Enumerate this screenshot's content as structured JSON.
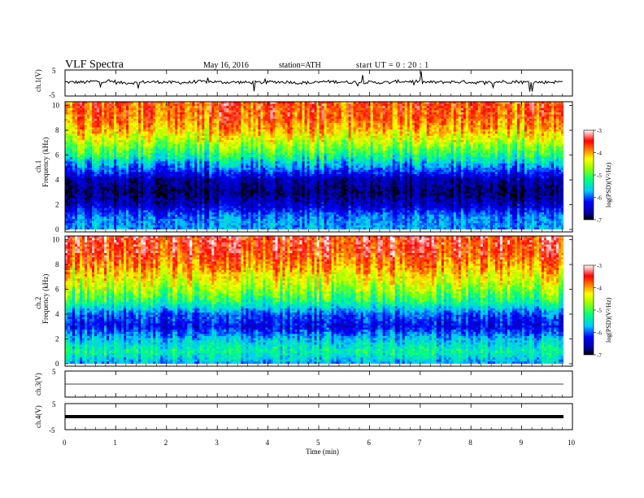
{
  "header": {
    "title": "VLF  Spectra",
    "date": "May 16, 2016",
    "station": "station=ATH",
    "start": "start  UT =   0 : 20 : 1"
  },
  "chart_data": [
    {
      "type": "line",
      "panel": "ch1-waveform",
      "ylabel": "ch.1(V)",
      "ylim": [
        -5,
        5
      ],
      "yticks": [
        "5",
        "-5"
      ],
      "xlim": [
        0,
        10
      ],
      "x": [
        0,
        0.5,
        1,
        1.5,
        2,
        2.5,
        3,
        3.5,
        4,
        4.5,
        5,
        5.5,
        6,
        6.5,
        7,
        7.5,
        8,
        8.5,
        9,
        9.5,
        9.8
      ],
      "values": [
        0.3,
        0.6,
        0.1,
        0.4,
        0.2,
        0.5,
        0.3,
        0.2,
        0.4,
        0.1,
        0.5,
        0.3,
        0.2,
        0.6,
        0.3,
        0.4,
        0.2,
        0.5,
        0.3,
        0.4,
        0.3
      ]
    },
    {
      "type": "heatmap",
      "panel": "ch1-spectrogram",
      "ylabel": "Frequency (kHz)",
      "channel_label": "ch.1",
      "ylim": [
        0,
        10
      ],
      "yticks": [
        "0",
        "2",
        "4",
        "6",
        "8",
        "10"
      ],
      "xlim": [
        0,
        10
      ],
      "colorbar": {
        "label": "log(PSD)(V²/Hz)",
        "range": [
          -7,
          -3
        ],
        "ticks": [
          "-3",
          "-4",
          "-5",
          "-6",
          "-7"
        ]
      },
      "frequency_profile_kHz": [
        0,
        1,
        2,
        3,
        4,
        5,
        6,
        7,
        8,
        9,
        10
      ],
      "logpsd_profile": [
        -5.8,
        -5.9,
        -6.5,
        -6.8,
        -6.6,
        -5.9,
        -5.2,
        -4.6,
        -4.1,
        -3.8,
        -3.7
      ]
    },
    {
      "type": "heatmap",
      "panel": "ch2-spectrogram",
      "ylabel": "Frequency (kHz)",
      "channel_label": "ch.2",
      "ylim": [
        0,
        10
      ],
      "yticks": [
        "0",
        "2",
        "4",
        "6",
        "8",
        "10"
      ],
      "xlim": [
        0,
        10
      ],
      "colorbar": {
        "label": "log(PSD)(V²/Hz)",
        "range": [
          -7,
          -3
        ],
        "ticks": [
          "-3",
          "-4",
          "-5",
          "-6",
          "-7"
        ]
      },
      "frequency_profile_kHz": [
        0,
        1,
        2,
        3,
        4,
        5,
        6,
        7,
        8,
        9,
        10
      ],
      "logpsd_profile": [
        -5.8,
        -5.3,
        -5.7,
        -6.3,
        -6.0,
        -5.2,
        -4.7,
        -4.3,
        -3.9,
        -3.6,
        -3.5
      ]
    },
    {
      "type": "line",
      "panel": "ch3-waveform",
      "ylabel": "ch.3(V)",
      "ylim": [
        -5,
        5
      ],
      "yticks": [
        "5",
        "-5"
      ],
      "xlim": [
        0,
        10
      ],
      "x": [
        0,
        9.8
      ],
      "values": [
        0,
        0
      ]
    },
    {
      "type": "line",
      "panel": "ch4-waveform",
      "ylabel": "ch.4(V)",
      "ylim": [
        -5,
        5
      ],
      "yticks": [
        "5",
        "-5"
      ],
      "xlim": [
        0,
        10
      ],
      "xticks": [
        "0",
        "1",
        "2",
        "3",
        "4",
        "5",
        "6",
        "7",
        "8",
        "9",
        "10"
      ],
      "xlabel": "Time  (min)",
      "x": [
        0,
        9.8
      ],
      "values": [
        0,
        0
      ]
    }
  ]
}
